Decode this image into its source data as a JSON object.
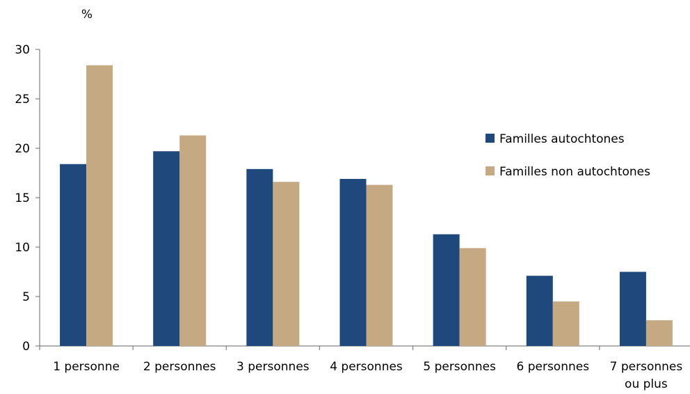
{
  "chart_data": {
    "type": "bar",
    "unit_label": "%",
    "categories": [
      [
        "1 personne"
      ],
      [
        "2 personnes"
      ],
      [
        "3 personnes"
      ],
      [
        "4 personnes"
      ],
      [
        "5 personnes"
      ],
      [
        "6 personnes"
      ],
      [
        "7 personnes",
        "ou plus"
      ]
    ],
    "series": [
      {
        "name": "Familles autochtones",
        "color": "#1f497d",
        "values": [
          18.4,
          19.7,
          17.9,
          16.9,
          11.3,
          7.1,
          7.5
        ]
      },
      {
        "name": "Familles non autochtones",
        "color": "#c4a982",
        "values": [
          28.4,
          21.3,
          16.6,
          16.3,
          9.9,
          4.5,
          2.6
        ]
      }
    ],
    "ylim": [
      0,
      30
    ],
    "yticks": [
      0,
      5,
      10,
      15,
      20,
      25,
      30
    ],
    "grid": false,
    "legend_position": "right"
  }
}
